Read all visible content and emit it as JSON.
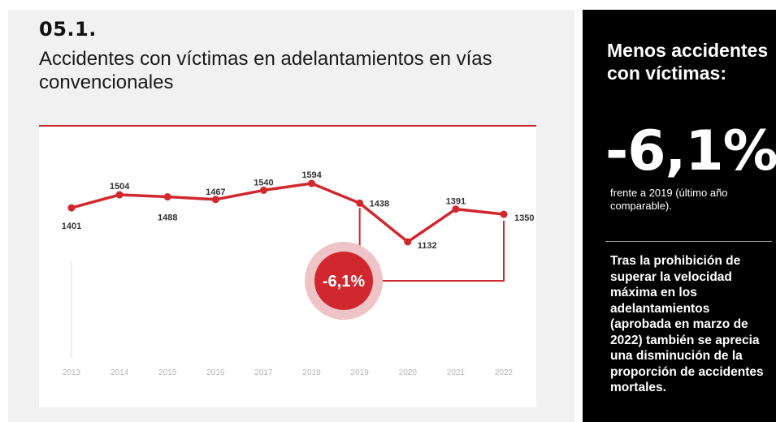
{
  "header": {
    "section_number": "05.1.",
    "title": "Accidentes con víctimas en adelantamientos en vías convencionales"
  },
  "chart_data": {
    "type": "line",
    "title": "",
    "xlabel": "",
    "ylabel": "",
    "x": [
      "2013",
      "2014",
      "2015",
      "2016",
      "2017",
      "2018",
      "2019",
      "2020",
      "2021",
      "2022"
    ],
    "series": [
      {
        "values": [
          1401,
          1504,
          1488,
          1467,
          1540,
          1594,
          1438,
          1132,
          1391,
          1350
        ]
      }
    ],
    "data_labels": [
      "1401",
      "1504",
      "1488",
      "1467",
      "1540",
      "1594",
      "1438",
      "1132",
      "1391",
      "1350"
    ],
    "ylim": [
      1100,
      1650
    ],
    "grid": false,
    "line_color": "#d0282e",
    "annotation": {
      "text": "-6,1%",
      "from_year": "2019",
      "to_year": "2022"
    }
  },
  "sidebar": {
    "heading": "Menos accidentes con víctimas:",
    "value": "-6,1%",
    "note": "frente a 2019 (último año comparable).",
    "body": "Tras la prohibición de superar la velocidad máxima en los adelantamientos (aprobada en marzo de 2022) también se aprecia una disminución de la proporción de accidentes mortales."
  },
  "colors": {
    "accent": "#d0282e",
    "panel_bg": "#f1f1f1",
    "sidebar_bg": "#000000"
  }
}
